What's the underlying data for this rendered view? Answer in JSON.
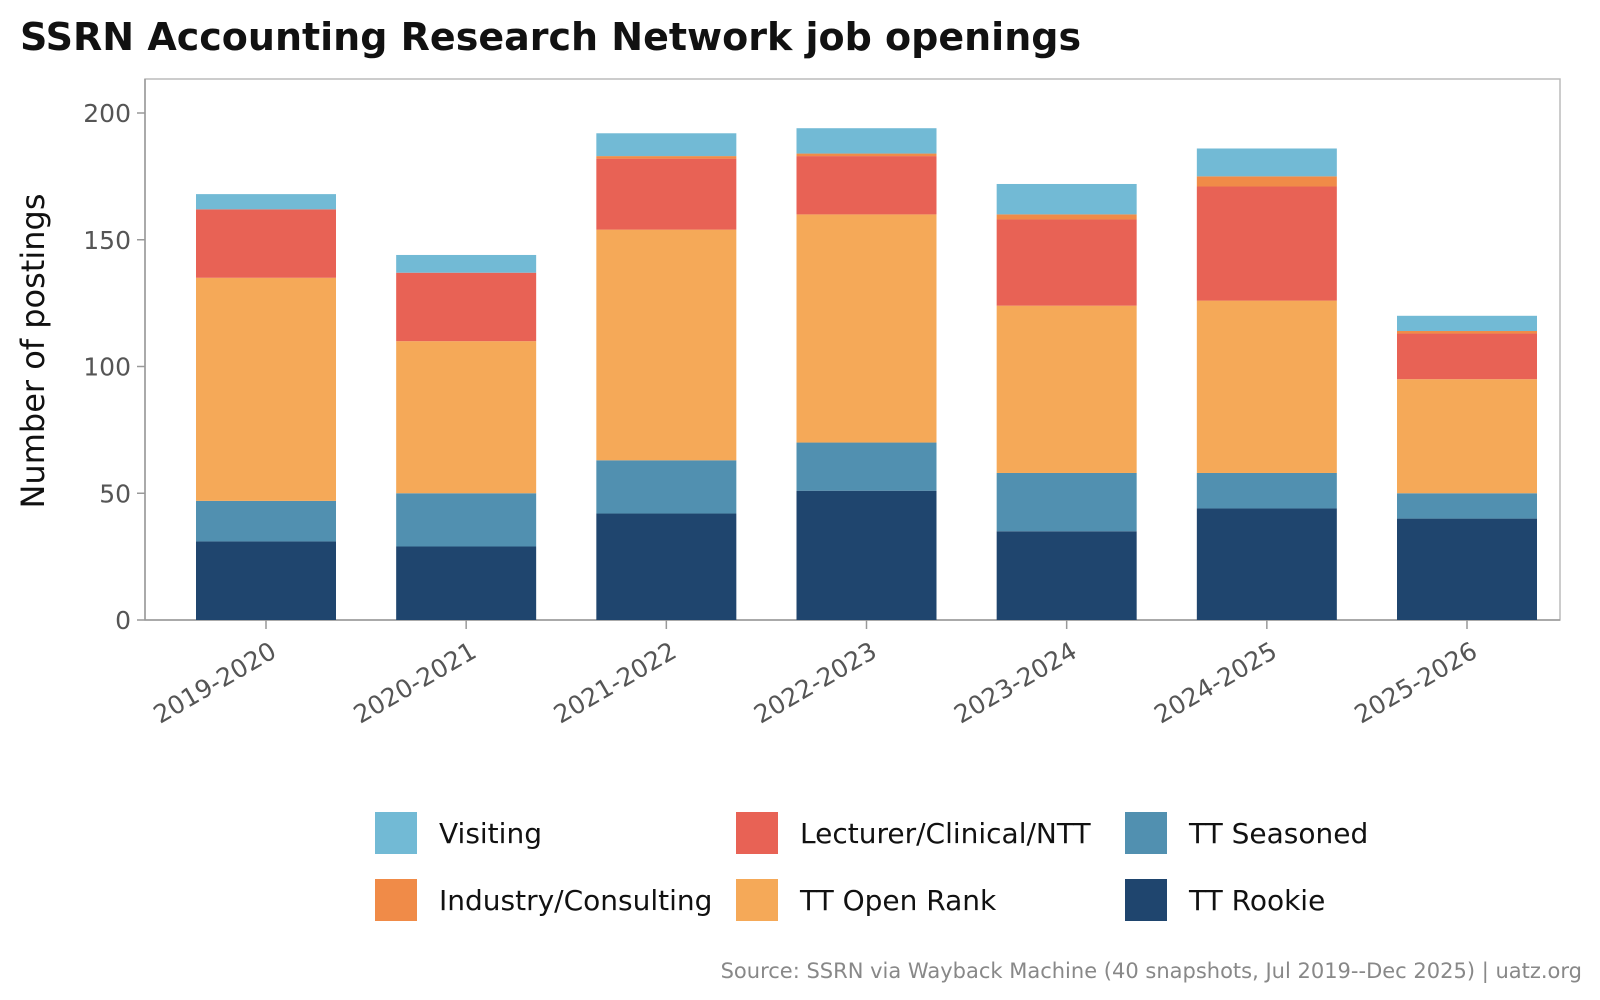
{
  "chart_data": {
    "type": "bar",
    "stacked": true,
    "title": "SSRN Accounting Research Network job openings",
    "ylabel": "Number of postings",
    "xlabel": "",
    "ylim": [
      0,
      210
    ],
    "yticks": [
      0,
      50,
      100,
      150,
      200
    ],
    "grid": false,
    "legend_position": "bottom",
    "categories": [
      "2019-2020",
      "2020-2021",
      "2021-2022",
      "2022-2023",
      "2023-2024",
      "2024-2025",
      "2025-2026"
    ],
    "series": [
      {
        "name": "TT Rookie",
        "color": "#1f456e",
        "values": [
          31,
          29,
          42,
          51,
          35,
          44,
          40
        ]
      },
      {
        "name": "TT Seasoned",
        "color": "#5190b0",
        "values": [
          16,
          21,
          21,
          19,
          23,
          14,
          10
        ]
      },
      {
        "name": "TT Open Rank",
        "color": "#f5a958",
        "values": [
          88,
          60,
          91,
          90,
          66,
          68,
          45
        ]
      },
      {
        "name": "Lecturer/Clinical/NTT",
        "color": "#e86255",
        "values": [
          27,
          27,
          28,
          23,
          34,
          45,
          18
        ]
      },
      {
        "name": "Industry/Consulting",
        "color": "#f08b48",
        "values": [
          0,
          0,
          1,
          1,
          2,
          4,
          1
        ]
      },
      {
        "name": "Visiting",
        "color": "#72bad5",
        "values": [
          6,
          7,
          9,
          10,
          12,
          11,
          6
        ]
      }
    ],
    "legend_order": [
      "Visiting",
      "Lecturer/Clinical/NTT",
      "TT Seasoned",
      "Industry/Consulting",
      "TT Open Rank",
      "TT Rookie"
    ],
    "caption": "Source: SSRN via Wayback Machine (40 snapshots, Jul 2019--Dec 2025) | uatz.org"
  }
}
